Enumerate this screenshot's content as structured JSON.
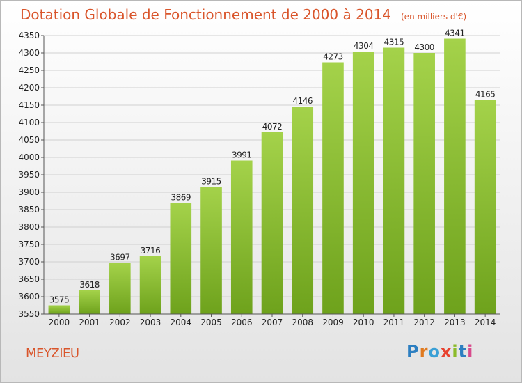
{
  "title": {
    "main": "Dotation Globale de Fonctionnement de 2000 à 2014",
    "unit": "(en milliers d'€)"
  },
  "city": "MEYZIEU",
  "logo": {
    "letters": [
      "P",
      "r",
      "o",
      "x",
      "i",
      "t",
      "i"
    ]
  },
  "colors": {
    "title": "#d9552b",
    "bar_light": "#a4d24a",
    "bar_dark": "#6ea21c",
    "grid": "#d0d0d0"
  },
  "chart_data": {
    "type": "bar",
    "title": "Dotation Globale de Fonctionnement de 2000 à 2014",
    "xlabel": "",
    "ylabel": "",
    "categories": [
      "2000",
      "2001",
      "2002",
      "2003",
      "2004",
      "2005",
      "2006",
      "2007",
      "2008",
      "2009",
      "2010",
      "2011",
      "2012",
      "2013",
      "2014"
    ],
    "values": [
      3575,
      3618,
      3697,
      3716,
      3869,
      3915,
      3991,
      4072,
      4146,
      4273,
      4304,
      4315,
      4300,
      4341,
      4165
    ],
    "ylim": [
      3550,
      4350
    ],
    "yticks": [
      3550,
      3600,
      3650,
      3700,
      3750,
      3800,
      3850,
      3900,
      3950,
      4000,
      4050,
      4100,
      4150,
      4200,
      4250,
      4300,
      4350
    ],
    "grid": true,
    "data_labels": true
  }
}
